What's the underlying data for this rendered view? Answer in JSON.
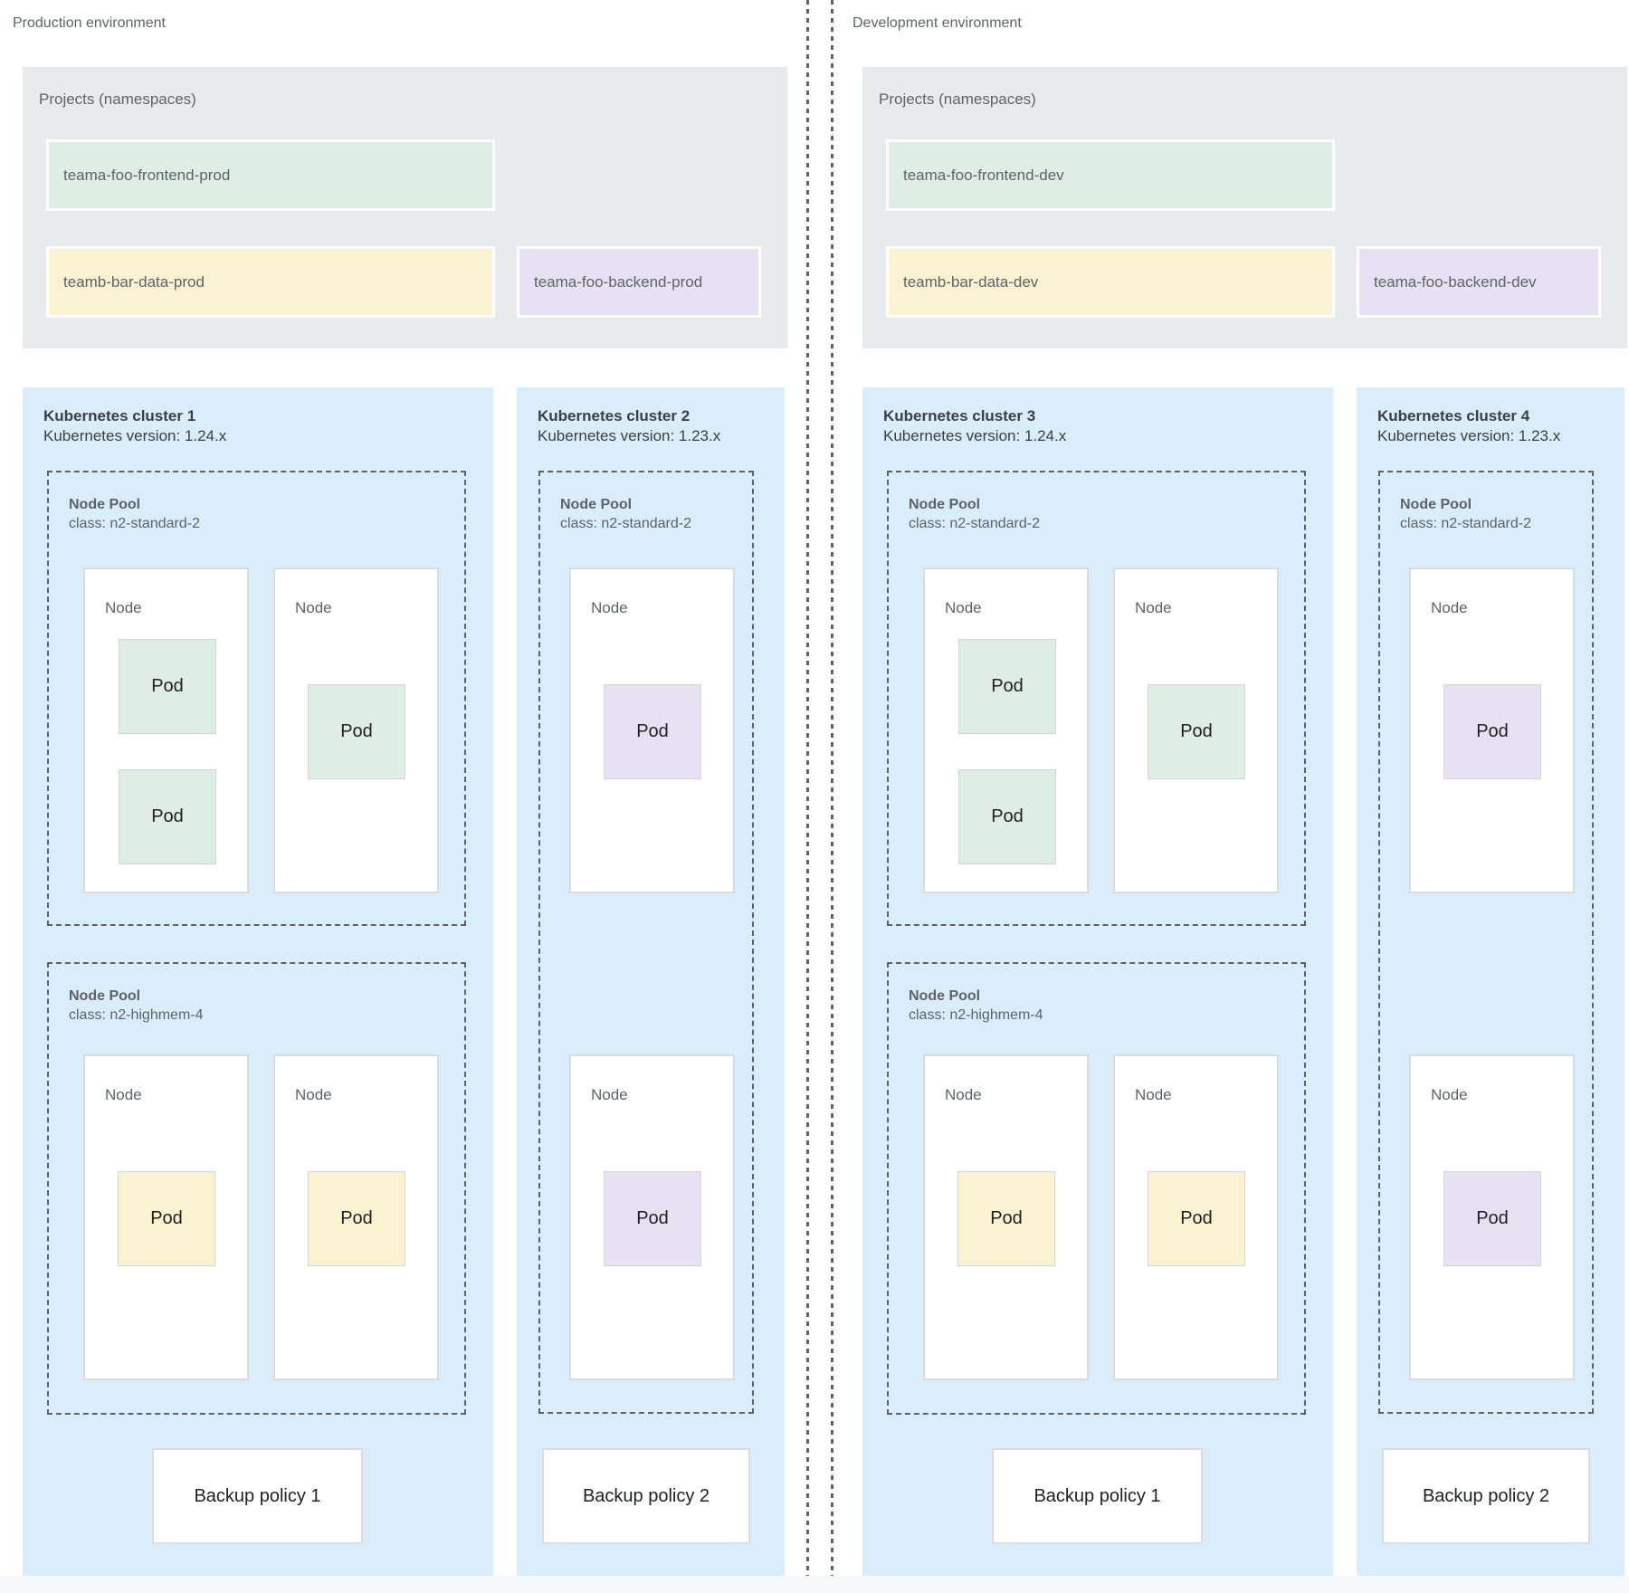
{
  "labels": {
    "node": "Node",
    "pod": "Pod"
  },
  "colors": {
    "cluster_bg": "#d9edfa",
    "projects_bg": "#e8eaed",
    "frontend_green": "#dfeee5",
    "data_yellow": "#fbf2d2",
    "backend_purple": "#e8e1f3"
  },
  "environments": [
    {
      "label": "Production environment",
      "projects": {
        "title": "Projects (namespaces)",
        "items": [
          {
            "name": "teama-foo-frontend-prod",
            "color": "green"
          },
          {
            "name": "teamb-bar-data-prod",
            "color": "yellow"
          },
          {
            "name": "teama-foo-backend-prod",
            "color": "purple"
          }
        ]
      },
      "clusters": [
        {
          "title": "Kubernetes cluster 1",
          "version": "Kubernetes version: 1.24.x",
          "backup_policy": "Backup policy 1",
          "node_pools": [
            {
              "name": "Node Pool",
              "machine_class": "class: n2-standard-2"
            },
            {
              "name": "Node Pool",
              "machine_class": "class: n2-highmem-4"
            }
          ]
        },
        {
          "title": "Kubernetes cluster 2",
          "version": "Kubernetes version: 1.23.x",
          "backup_policy": "Backup policy 2",
          "node_pools": [
            {
              "name": "Node Pool",
              "machine_class": "class: n2-standard-2"
            }
          ]
        }
      ]
    },
    {
      "label": "Development environment",
      "projects": {
        "title": "Projects (namespaces)",
        "items": [
          {
            "name": "teama-foo-frontend-dev",
            "color": "green"
          },
          {
            "name": "teamb-bar-data-dev",
            "color": "yellow"
          },
          {
            "name": "teama-foo-backend-dev",
            "color": "purple"
          }
        ]
      },
      "clusters": [
        {
          "title": "Kubernetes cluster 3",
          "version": "Kubernetes version: 1.24.x",
          "backup_policy": "Backup policy 1",
          "node_pools": [
            {
              "name": "Node Pool",
              "machine_class": "class: n2-standard-2"
            },
            {
              "name": "Node Pool",
              "machine_class": "class: n2-highmem-4"
            }
          ]
        },
        {
          "title": "Kubernetes cluster 4",
          "version": "Kubernetes version: 1.23.x",
          "backup_policy": "Backup policy 2",
          "node_pools": [
            {
              "name": "Node Pool",
              "machine_class": "class: n2-standard-2"
            }
          ]
        }
      ]
    }
  ]
}
